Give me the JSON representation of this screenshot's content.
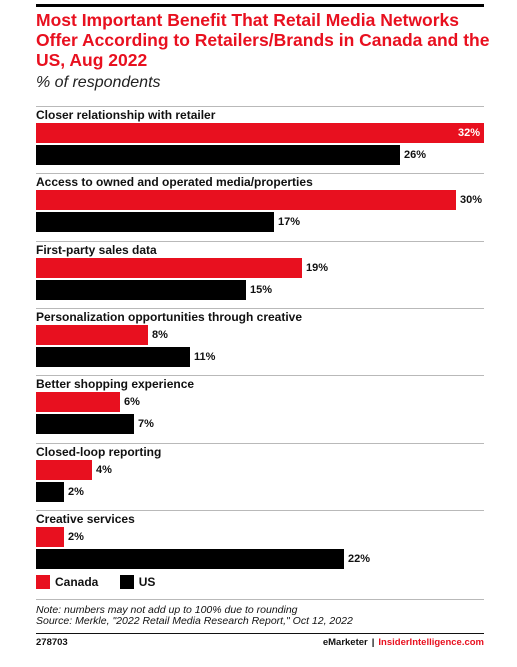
{
  "title": "Most Important Benefit That Retail Media Networks Offer According to Retailers/Brands in Canada and the US, Aug 2022",
  "subtitle": "% of respondents",
  "chart_data": {
    "type": "bar",
    "orientation": "horizontal",
    "title": "Most Important Benefit That Retail Media Networks Offer According to Retailers/Brands in Canada and the US, Aug 2022",
    "subtitle": "% of respondents",
    "categories": [
      "Closer relationship with retailer",
      "Access to owned and operated media/properties",
      "First-party sales data",
      "Personalization opportunities through creative",
      "Better shopping experience",
      "Closed-loop reporting",
      "Creative services"
    ],
    "series": [
      {
        "name": "Canada",
        "values": [
          32,
          30,
          19,
          8,
          6,
          4,
          2
        ],
        "color": "#e8101f"
      },
      {
        "name": "US",
        "values": [
          26,
          17,
          15,
          11,
          7,
          2,
          22
        ],
        "color": "#000000"
      }
    ],
    "value_suffix": "%",
    "xlim": [
      0,
      32
    ],
    "grid": false,
    "legend_position": "bottom-left"
  },
  "legend": [
    {
      "label": "Canada",
      "color": "#e8101f"
    },
    {
      "label": "US",
      "color": "#000000"
    }
  ],
  "footer": {
    "note": "Note: numbers may not add up to 100% due to rounding",
    "source": "Source: Merkle, \"2022 Retail Media Research Report,\" Oct 12, 2022",
    "chart_id": "278703",
    "brand_left": "eMarketer",
    "brand_separator": "|",
    "brand_right": "InsiderIntelligence.com"
  }
}
